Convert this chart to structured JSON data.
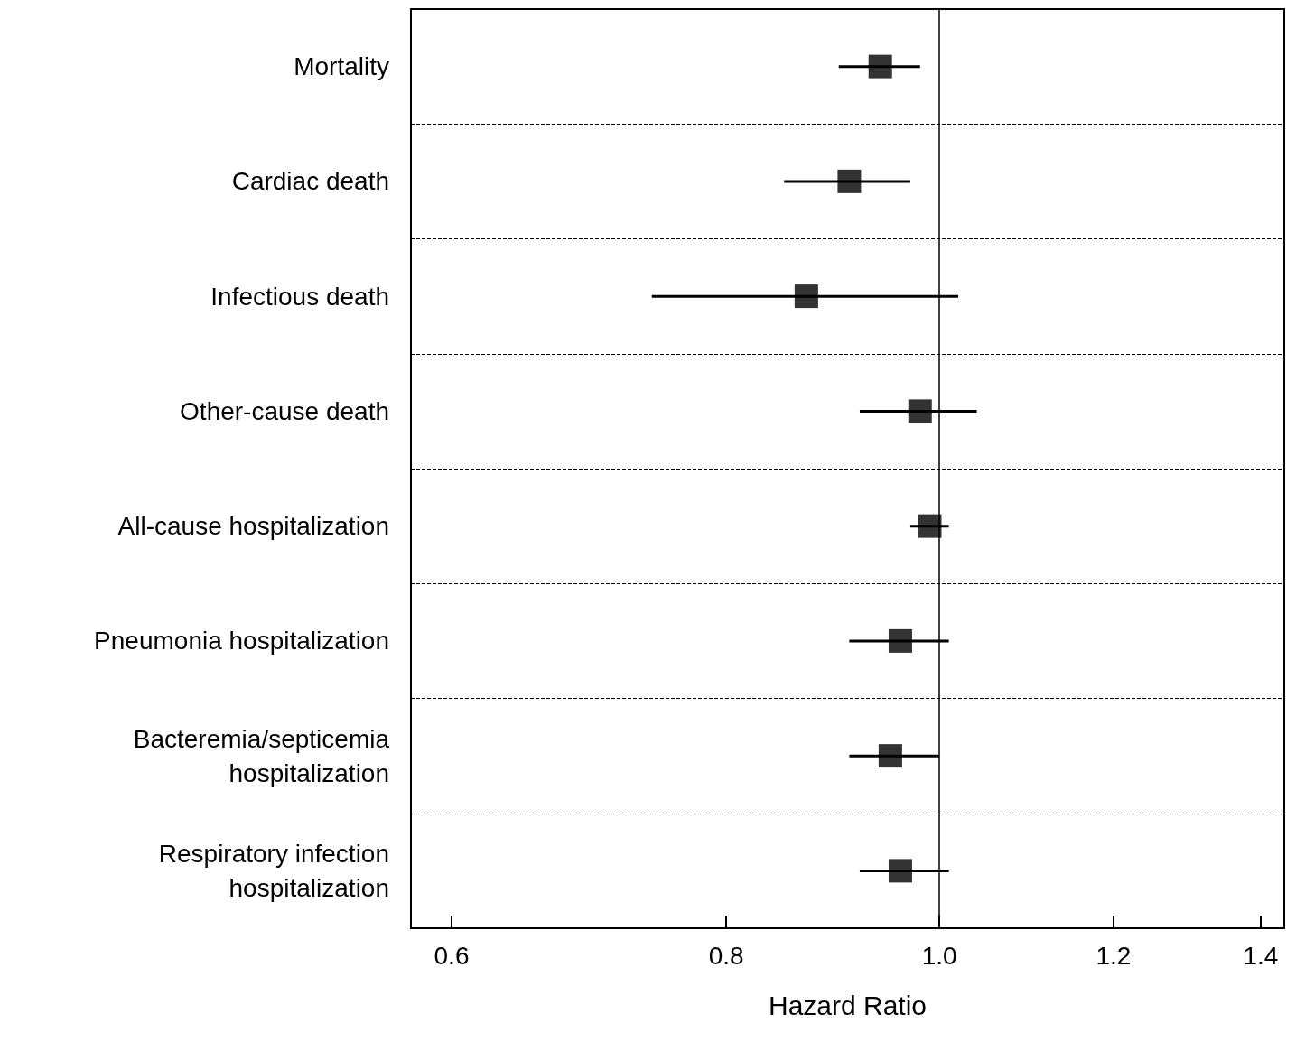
{
  "chart_data": {
    "type": "scatter",
    "orientation": "horizontal",
    "xlabel": "Hazard Ratio",
    "categories": [
      "Mortality",
      "Cardiac death",
      "Infectious death",
      "Other-cause death",
      "All-cause hospitalization",
      "Pneumonia hospitalization",
      "Bacteremia/septicemia\nhospitalization",
      "Respiratory infection\nhospitalization"
    ],
    "values": [
      0.94,
      0.91,
      0.87,
      0.98,
      0.99,
      0.96,
      0.95,
      0.96
    ],
    "errors": [
      [
        0.9,
        0.98
      ],
      [
        0.85,
        0.97
      ],
      [
        0.74,
        1.02
      ],
      [
        0.92,
        1.04
      ],
      [
        0.97,
        1.01
      ],
      [
        0.91,
        1.01
      ],
      [
        0.91,
        1.0
      ],
      [
        0.92,
        1.01
      ]
    ],
    "color": "#000000",
    "marker": "square",
    "log": "x",
    "grid": "y",
    "xlim": [
      0.575,
      1.435
    ],
    "xticks": [
      0.6,
      0.8,
      {
        "value": 1,
        "label": "1.0"
      },
      1.2,
      1.4
    ],
    "ref_lines": [
      {
        "axis": "x",
        "value": 1,
        "label": null
      }
    ]
  }
}
